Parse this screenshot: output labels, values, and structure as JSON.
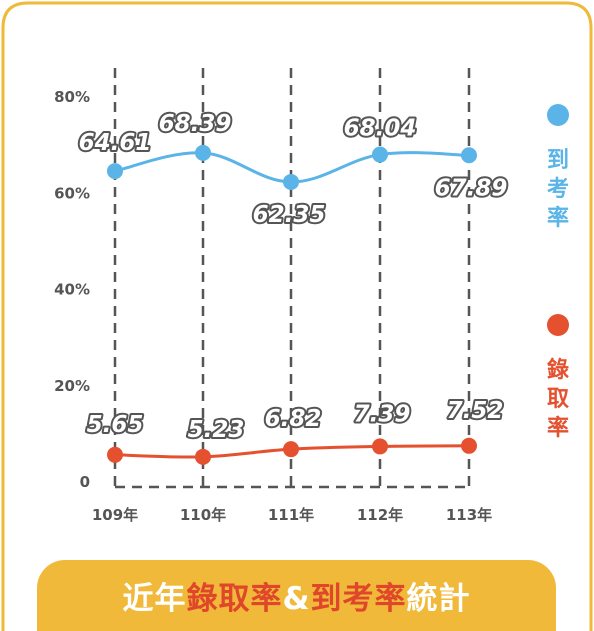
{
  "chart_data": {
    "type": "line",
    "title": "近年錄取率&到考率統計",
    "title_parts": [
      {
        "text": "近年",
        "highlight": false
      },
      {
        "text": "錄取率",
        "highlight": true
      },
      {
        "text": "&",
        "highlight": false
      },
      {
        "text": "到考率",
        "highlight": true
      },
      {
        "text": "統計",
        "highlight": false
      }
    ],
    "categories": [
      "109年",
      "110年",
      "111年",
      "112年",
      "113年"
    ],
    "y_ticks": [
      0,
      20,
      40,
      60,
      80
    ],
    "y_tick_labels": [
      "0",
      "20%",
      "40%",
      "60%",
      "80%"
    ],
    "ylim": [
      0,
      80
    ],
    "grid": "vertical-dashed",
    "legend_position": "right",
    "series": [
      {
        "name": "到考率",
        "color": "#5ab4e8",
        "values": [
          64.61,
          68.39,
          62.35,
          68.04,
          67.89
        ],
        "labels": [
          "64.61",
          "68.39",
          "62.35",
          "68.04",
          "67.89"
        ]
      },
      {
        "name": "錄取率",
        "color": "#e5502f",
        "values": [
          5.65,
          5.23,
          6.82,
          7.39,
          7.52
        ],
        "labels": [
          "5.65",
          "5.23",
          "6.82",
          "7.39",
          "7.52"
        ]
      }
    ]
  },
  "colors": {
    "frame": "#f0b93a",
    "banner": "#f0b93a",
    "title_text": "#ffffff",
    "title_highlight": "#e0462a",
    "axis_text": "#555555"
  }
}
